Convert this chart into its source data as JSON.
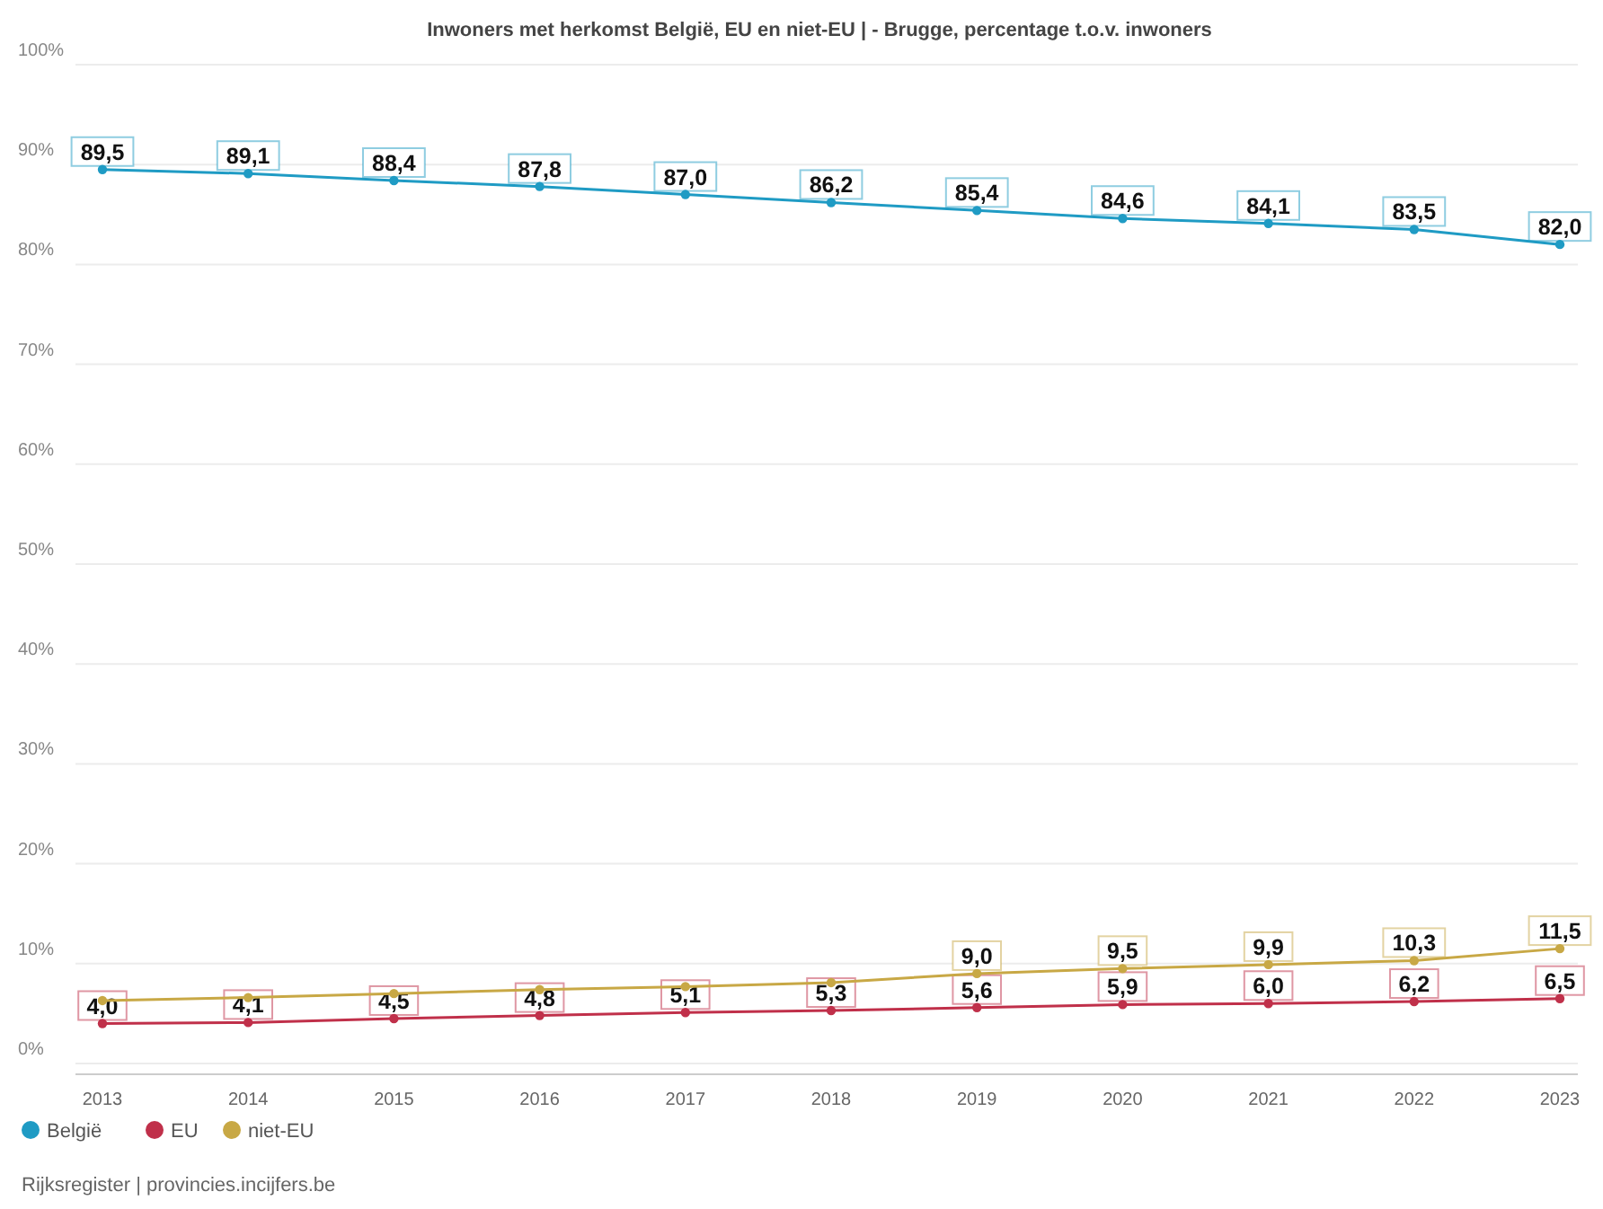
{
  "chart_data": {
    "type": "line",
    "title": "Inwoners met herkomst België, EU en niet-EU | - Brugge, percentage t.o.v. inwoners",
    "categories": [
      "2013",
      "2014",
      "2015",
      "2016",
      "2017",
      "2018",
      "2019",
      "2020",
      "2021",
      "2022",
      "2023"
    ],
    "series": [
      {
        "name": "België",
        "color": "#1f9bc4",
        "values": [
          89.5,
          89.1,
          88.4,
          87.8,
          87.0,
          86.2,
          85.4,
          84.6,
          84.1,
          83.5,
          82.0
        ],
        "value_labels": [
          "89,5",
          "89,1",
          "88,4",
          "87,8",
          "87,0",
          "86,2",
          "85,4",
          "84,6",
          "84,1",
          "83,5",
          "82,0"
        ]
      },
      {
        "name": "EU",
        "color": "#c0304a",
        "values": [
          4.0,
          4.1,
          4.5,
          4.8,
          5.1,
          5.3,
          5.6,
          5.9,
          6.0,
          6.2,
          6.5
        ],
        "value_labels": [
          "4,0",
          "4,1",
          "4,5",
          "4,8",
          "5,1",
          "5,3",
          "5,6",
          "5,9",
          "6,0",
          "6,2",
          "6,5"
        ]
      },
      {
        "name": "niet-EU",
        "color": "#c8a845",
        "values": [
          6.3,
          6.6,
          7.0,
          7.4,
          7.7,
          8.1,
          9.0,
          9.5,
          9.9,
          10.3,
          11.5
        ],
        "value_labels": [
          null,
          null,
          null,
          null,
          null,
          null,
          "9,0",
          "9,5",
          "9,9",
          "10,3",
          "11,5"
        ]
      }
    ],
    "ylim": [
      0,
      100
    ],
    "yticks": [
      {
        "value": 0,
        "label": "0%"
      },
      {
        "value": 10,
        "label": "10%"
      },
      {
        "value": 20,
        "label": "20%"
      },
      {
        "value": 30,
        "label": "30%"
      },
      {
        "value": 40,
        "label": "40%"
      },
      {
        "value": 50,
        "label": "50%"
      },
      {
        "value": 60,
        "label": "60%"
      },
      {
        "value": 70,
        "label": "70%"
      },
      {
        "value": 80,
        "label": "80%"
      },
      {
        "value": 90,
        "label": "90%"
      },
      {
        "value": 100,
        "label": "100%"
      }
    ],
    "grid": "y",
    "legend": "bottom left",
    "marker": "circle",
    "line_style": "solid",
    "annotations": [
      "Rijksregister | provincies.incijfers.be"
    ]
  }
}
